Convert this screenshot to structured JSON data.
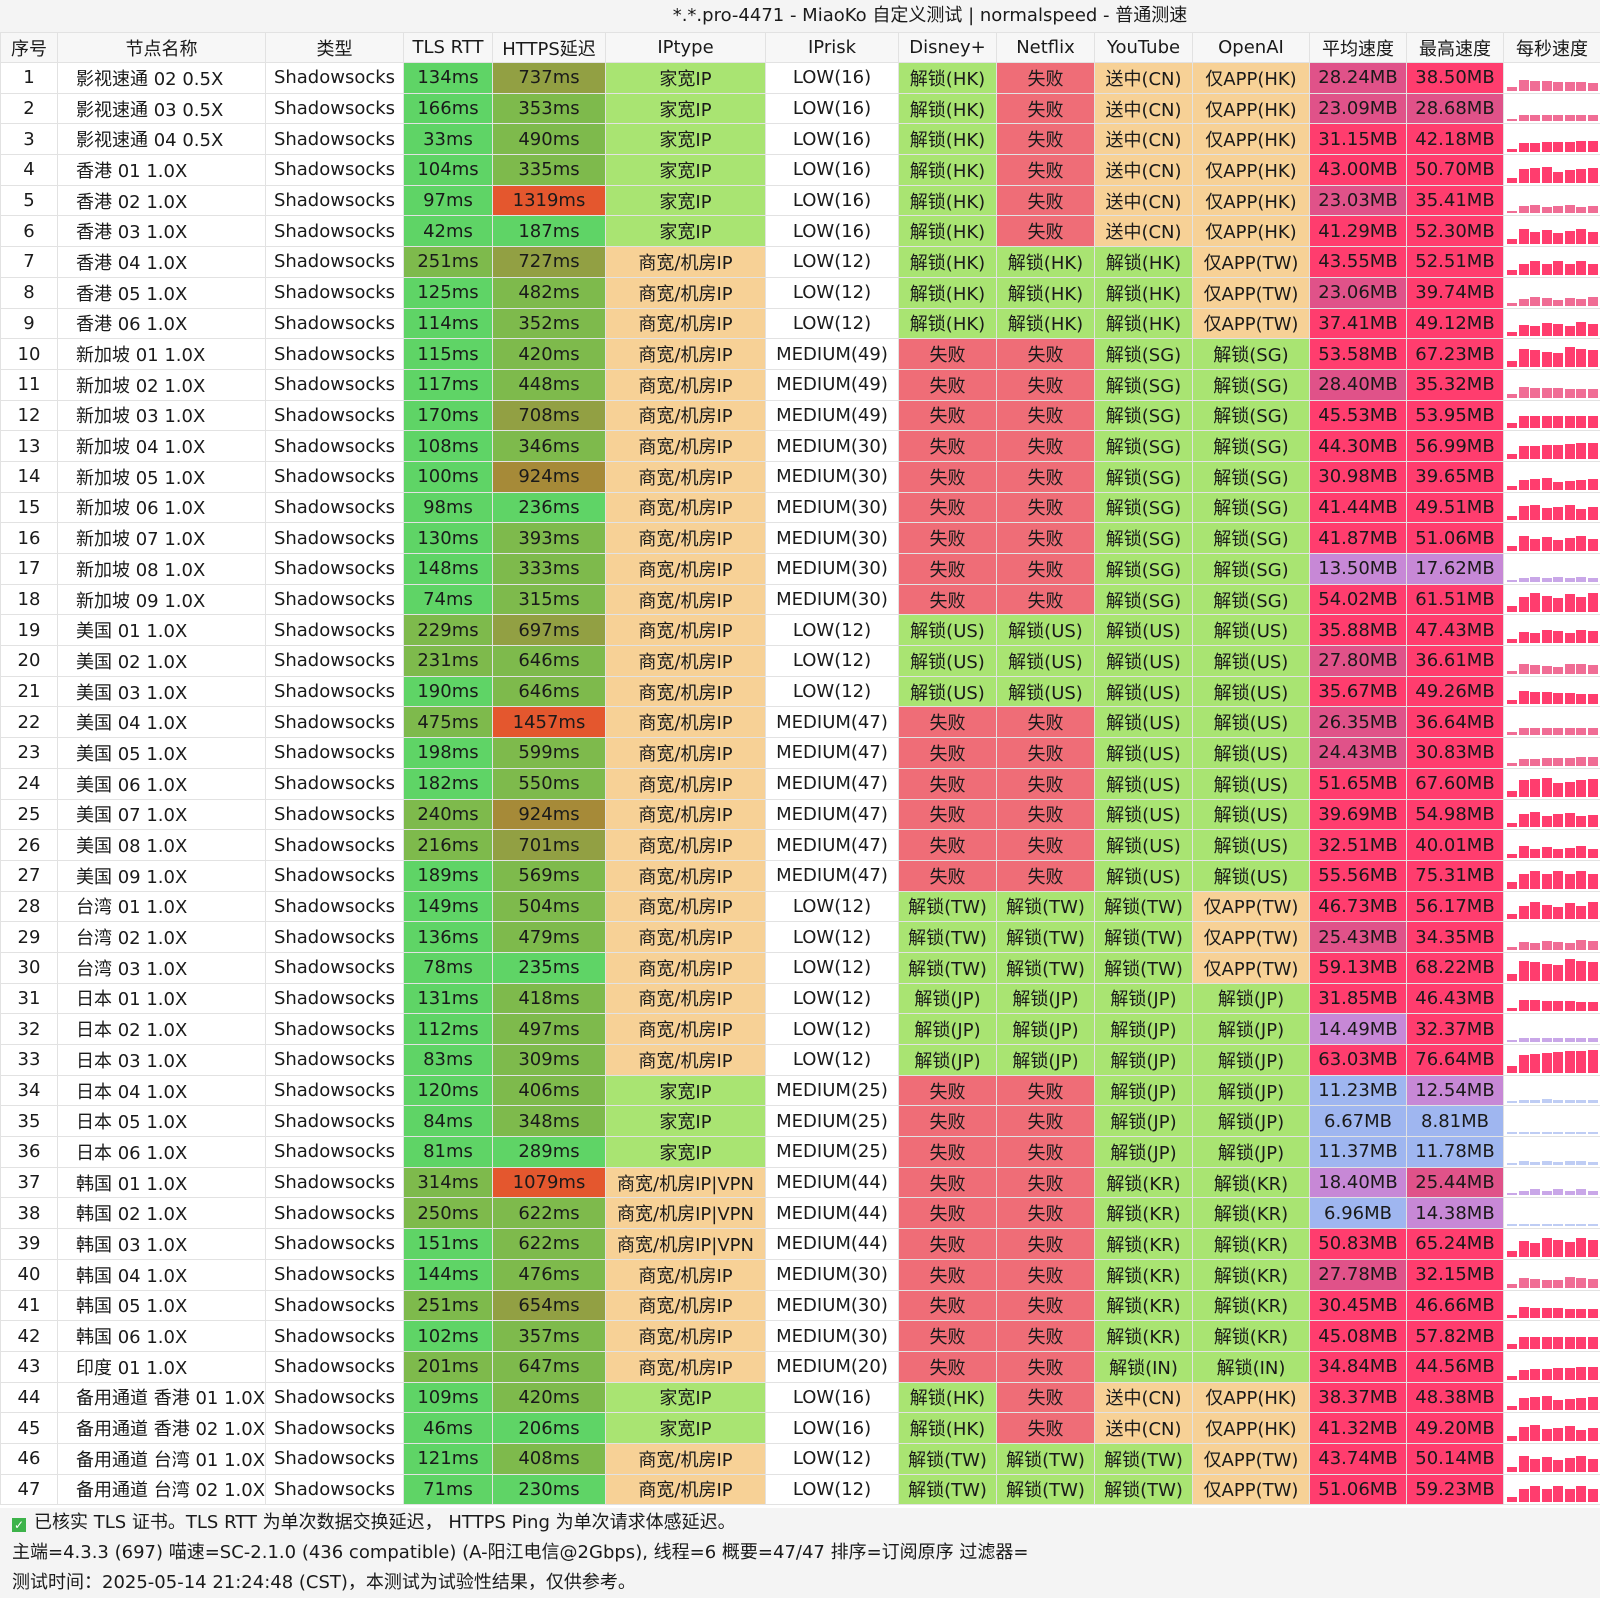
{
  "title": "*.*.pro-4471 - MiaoKo 自定义测试 | normalspeed - 普通测速",
  "headers": [
    "序号",
    "节点名称",
    "类型",
    "TLS RTT",
    "HTTPS延迟",
    "IPtype",
    "IPrisk",
    "Disney+",
    "Netflix",
    "YouTube",
    "OpenAI",
    "平均速度",
    "最高速度",
    "每秒速度"
  ],
  "rows": [
    [
      "1",
      "影视速通 02 0.5X",
      "Shadowsocks",
      "134ms",
      "737ms",
      "家宽IP",
      "LOW(16)",
      "解锁(HK)",
      "失败",
      "送中(CN)",
      "仅APP(HK)",
      "28.24MB",
      "38.50MB"
    ],
    [
      "2",
      "影视速通 03 0.5X",
      "Shadowsocks",
      "166ms",
      "353ms",
      "家宽IP",
      "LOW(16)",
      "解锁(HK)",
      "失败",
      "送中(CN)",
      "仅APP(HK)",
      "23.09MB",
      "28.68MB"
    ],
    [
      "3",
      "影视速通 04 0.5X",
      "Shadowsocks",
      "33ms",
      "490ms",
      "家宽IP",
      "LOW(16)",
      "解锁(HK)",
      "失败",
      "送中(CN)",
      "仅APP(HK)",
      "31.15MB",
      "42.18MB"
    ],
    [
      "4",
      "香港 01 1.0X",
      "Shadowsocks",
      "104ms",
      "335ms",
      "家宽IP",
      "LOW(16)",
      "解锁(HK)",
      "失败",
      "送中(CN)",
      "仅APP(HK)",
      "43.00MB",
      "50.70MB"
    ],
    [
      "5",
      "香港 02 1.0X",
      "Shadowsocks",
      "97ms",
      "1319ms",
      "家宽IP",
      "LOW(16)",
      "解锁(HK)",
      "失败",
      "送中(CN)",
      "仅APP(HK)",
      "23.03MB",
      "35.41MB"
    ],
    [
      "6",
      "香港 03 1.0X",
      "Shadowsocks",
      "42ms",
      "187ms",
      "家宽IP",
      "LOW(16)",
      "解锁(HK)",
      "失败",
      "送中(CN)",
      "仅APP(HK)",
      "41.29MB",
      "52.30MB"
    ],
    [
      "7",
      "香港 04 1.0X",
      "Shadowsocks",
      "251ms",
      "727ms",
      "商宽/机房IP",
      "LOW(12)",
      "解锁(HK)",
      "解锁(HK)",
      "解锁(HK)",
      "仅APP(TW)",
      "43.55MB",
      "52.51MB"
    ],
    [
      "8",
      "香港 05 1.0X",
      "Shadowsocks",
      "125ms",
      "482ms",
      "商宽/机房IP",
      "LOW(12)",
      "解锁(HK)",
      "解锁(HK)",
      "解锁(HK)",
      "仅APP(TW)",
      "23.06MB",
      "39.74MB"
    ],
    [
      "9",
      "香港 06 1.0X",
      "Shadowsocks",
      "114ms",
      "352ms",
      "商宽/机房IP",
      "LOW(12)",
      "解锁(HK)",
      "解锁(HK)",
      "解锁(HK)",
      "仅APP(TW)",
      "37.41MB",
      "49.12MB"
    ],
    [
      "10",
      "新加坡 01 1.0X",
      "Shadowsocks",
      "115ms",
      "420ms",
      "商宽/机房IP",
      "MEDIUM(49)",
      "失败",
      "失败",
      "解锁(SG)",
      "解锁(SG)",
      "53.58MB",
      "67.23MB"
    ],
    [
      "11",
      "新加坡 02 1.0X",
      "Shadowsocks",
      "117ms",
      "448ms",
      "商宽/机房IP",
      "MEDIUM(49)",
      "失败",
      "失败",
      "解锁(SG)",
      "解锁(SG)",
      "28.40MB",
      "35.32MB"
    ],
    [
      "12",
      "新加坡 03 1.0X",
      "Shadowsocks",
      "170ms",
      "708ms",
      "商宽/机房IP",
      "MEDIUM(49)",
      "失败",
      "失败",
      "解锁(SG)",
      "解锁(SG)",
      "45.53MB",
      "53.95MB"
    ],
    [
      "13",
      "新加坡 04 1.0X",
      "Shadowsocks",
      "108ms",
      "346ms",
      "商宽/机房IP",
      "MEDIUM(30)",
      "失败",
      "失败",
      "解锁(SG)",
      "解锁(SG)",
      "44.30MB",
      "56.99MB"
    ],
    [
      "14",
      "新加坡 05 1.0X",
      "Shadowsocks",
      "100ms",
      "924ms",
      "商宽/机房IP",
      "MEDIUM(30)",
      "失败",
      "失败",
      "解锁(SG)",
      "解锁(SG)",
      "30.98MB",
      "39.65MB"
    ],
    [
      "15",
      "新加坡 06 1.0X",
      "Shadowsocks",
      "98ms",
      "236ms",
      "商宽/机房IP",
      "MEDIUM(30)",
      "失败",
      "失败",
      "解锁(SG)",
      "解锁(SG)",
      "41.44MB",
      "49.51MB"
    ],
    [
      "16",
      "新加坡 07 1.0X",
      "Shadowsocks",
      "130ms",
      "393ms",
      "商宽/机房IP",
      "MEDIUM(30)",
      "失败",
      "失败",
      "解锁(SG)",
      "解锁(SG)",
      "41.87MB",
      "51.06MB"
    ],
    [
      "17",
      "新加坡 08 1.0X",
      "Shadowsocks",
      "148ms",
      "333ms",
      "商宽/机房IP",
      "MEDIUM(30)",
      "失败",
      "失败",
      "解锁(SG)",
      "解锁(SG)",
      "13.50MB",
      "17.62MB"
    ],
    [
      "18",
      "新加坡 09 1.0X",
      "Shadowsocks",
      "74ms",
      "315ms",
      "商宽/机房IP",
      "MEDIUM(30)",
      "失败",
      "失败",
      "解锁(SG)",
      "解锁(SG)",
      "54.02MB",
      "61.51MB"
    ],
    [
      "19",
      "美国 01 1.0X",
      "Shadowsocks",
      "229ms",
      "697ms",
      "商宽/机房IP",
      "LOW(12)",
      "解锁(US)",
      "解锁(US)",
      "解锁(US)",
      "解锁(US)",
      "35.88MB",
      "47.43MB"
    ],
    [
      "20",
      "美国 02 1.0X",
      "Shadowsocks",
      "231ms",
      "646ms",
      "商宽/机房IP",
      "LOW(12)",
      "解锁(US)",
      "解锁(US)",
      "解锁(US)",
      "解锁(US)",
      "27.80MB",
      "36.61MB"
    ],
    [
      "21",
      "美国 03 1.0X",
      "Shadowsocks",
      "190ms",
      "646ms",
      "商宽/机房IP",
      "LOW(12)",
      "解锁(US)",
      "解锁(US)",
      "解锁(US)",
      "解锁(US)",
      "35.67MB",
      "49.26MB"
    ],
    [
      "22",
      "美国 04 1.0X",
      "Shadowsocks",
      "475ms",
      "1457ms",
      "商宽/机房IP",
      "MEDIUM(47)",
      "失败",
      "失败",
      "解锁(US)",
      "解锁(US)",
      "26.35MB",
      "36.64MB"
    ],
    [
      "23",
      "美国 05 1.0X",
      "Shadowsocks",
      "198ms",
      "599ms",
      "商宽/机房IP",
      "MEDIUM(47)",
      "失败",
      "失败",
      "解锁(US)",
      "解锁(US)",
      "24.43MB",
      "30.83MB"
    ],
    [
      "24",
      "美国 06 1.0X",
      "Shadowsocks",
      "182ms",
      "550ms",
      "商宽/机房IP",
      "MEDIUM(47)",
      "失败",
      "失败",
      "解锁(US)",
      "解锁(US)",
      "51.65MB",
      "67.60MB"
    ],
    [
      "25",
      "美国 07 1.0X",
      "Shadowsocks",
      "240ms",
      "924ms",
      "商宽/机房IP",
      "MEDIUM(47)",
      "失败",
      "失败",
      "解锁(US)",
      "解锁(US)",
      "39.69MB",
      "54.98MB"
    ],
    [
      "26",
      "美国 08 1.0X",
      "Shadowsocks",
      "216ms",
      "701ms",
      "商宽/机房IP",
      "MEDIUM(47)",
      "失败",
      "失败",
      "解锁(US)",
      "解锁(US)",
      "32.51MB",
      "40.01MB"
    ],
    [
      "27",
      "美国 09 1.0X",
      "Shadowsocks",
      "189ms",
      "569ms",
      "商宽/机房IP",
      "MEDIUM(47)",
      "失败",
      "失败",
      "解锁(US)",
      "解锁(US)",
      "55.56MB",
      "75.31MB"
    ],
    [
      "28",
      "台湾 01 1.0X",
      "Shadowsocks",
      "149ms",
      "504ms",
      "商宽/机房IP",
      "LOW(12)",
      "解锁(TW)",
      "解锁(TW)",
      "解锁(TW)",
      "仅APP(TW)",
      "46.73MB",
      "56.17MB"
    ],
    [
      "29",
      "台湾 02 1.0X",
      "Shadowsocks",
      "136ms",
      "479ms",
      "商宽/机房IP",
      "LOW(12)",
      "解锁(TW)",
      "解锁(TW)",
      "解锁(TW)",
      "仅APP(TW)",
      "25.43MB",
      "34.35MB"
    ],
    [
      "30",
      "台湾 03 1.0X",
      "Shadowsocks",
      "78ms",
      "235ms",
      "商宽/机房IP",
      "LOW(12)",
      "解锁(TW)",
      "解锁(TW)",
      "解锁(TW)",
      "仅APP(TW)",
      "59.13MB",
      "68.22MB"
    ],
    [
      "31",
      "日本 01 1.0X",
      "Shadowsocks",
      "131ms",
      "418ms",
      "商宽/机房IP",
      "LOW(12)",
      "解锁(JP)",
      "解锁(JP)",
      "解锁(JP)",
      "解锁(JP)",
      "31.85MB",
      "46.43MB"
    ],
    [
      "32",
      "日本 02 1.0X",
      "Shadowsocks",
      "112ms",
      "497ms",
      "商宽/机房IP",
      "LOW(12)",
      "解锁(JP)",
      "解锁(JP)",
      "解锁(JP)",
      "解锁(JP)",
      "14.49MB",
      "32.37MB"
    ],
    [
      "33",
      "日本 03 1.0X",
      "Shadowsocks",
      "83ms",
      "309ms",
      "商宽/机房IP",
      "LOW(12)",
      "解锁(JP)",
      "解锁(JP)",
      "解锁(JP)",
      "解锁(JP)",
      "63.03MB",
      "76.64MB"
    ],
    [
      "34",
      "日本 04 1.0X",
      "Shadowsocks",
      "120ms",
      "406ms",
      "家宽IP",
      "MEDIUM(25)",
      "失败",
      "失败",
      "解锁(JP)",
      "解锁(JP)",
      "11.23MB",
      "12.54MB"
    ],
    [
      "35",
      "日本 05 1.0X",
      "Shadowsocks",
      "84ms",
      "348ms",
      "家宽IP",
      "MEDIUM(25)",
      "失败",
      "失败",
      "解锁(JP)",
      "解锁(JP)",
      "6.67MB",
      "8.81MB"
    ],
    [
      "36",
      "日本 06 1.0X",
      "Shadowsocks",
      "81ms",
      "289ms",
      "家宽IP",
      "MEDIUM(25)",
      "失败",
      "失败",
      "解锁(JP)",
      "解锁(JP)",
      "11.37MB",
      "11.78MB"
    ],
    [
      "37",
      "韩国 01 1.0X",
      "Shadowsocks",
      "314ms",
      "1079ms",
      "商宽/机房IP|VPN",
      "MEDIUM(44)",
      "失败",
      "失败",
      "解锁(KR)",
      "解锁(KR)",
      "18.40MB",
      "25.44MB"
    ],
    [
      "38",
      "韩国 02 1.0X",
      "Shadowsocks",
      "250ms",
      "622ms",
      "商宽/机房IP|VPN",
      "MEDIUM(44)",
      "失败",
      "失败",
      "解锁(KR)",
      "解锁(KR)",
      "6.96MB",
      "14.38MB"
    ],
    [
      "39",
      "韩国 03 1.0X",
      "Shadowsocks",
      "151ms",
      "622ms",
      "商宽/机房IP|VPN",
      "MEDIUM(44)",
      "失败",
      "失败",
      "解锁(KR)",
      "解锁(KR)",
      "50.83MB",
      "65.24MB"
    ],
    [
      "40",
      "韩国 04 1.0X",
      "Shadowsocks",
      "144ms",
      "476ms",
      "商宽/机房IP",
      "MEDIUM(30)",
      "失败",
      "失败",
      "解锁(KR)",
      "解锁(KR)",
      "27.78MB",
      "32.15MB"
    ],
    [
      "41",
      "韩国 05 1.0X",
      "Shadowsocks",
      "251ms",
      "654ms",
      "商宽/机房IP",
      "MEDIUM(30)",
      "失败",
      "失败",
      "解锁(KR)",
      "解锁(KR)",
      "30.45MB",
      "46.66MB"
    ],
    [
      "42",
      "韩国 06 1.0X",
      "Shadowsocks",
      "102ms",
      "357ms",
      "商宽/机房IP",
      "MEDIUM(30)",
      "失败",
      "失败",
      "解锁(KR)",
      "解锁(KR)",
      "45.08MB",
      "57.82MB"
    ],
    [
      "43",
      "印度 01 1.0X",
      "Shadowsocks",
      "201ms",
      "647ms",
      "商宽/机房IP",
      "MEDIUM(20)",
      "失败",
      "失败",
      "解锁(IN)",
      "解锁(IN)",
      "34.84MB",
      "44.56MB"
    ],
    [
      "44",
      "备用通道 香港 01 1.0X",
      "Shadowsocks",
      "109ms",
      "420ms",
      "家宽IP",
      "LOW(16)",
      "解锁(HK)",
      "失败",
      "送中(CN)",
      "仅APP(HK)",
      "38.37MB",
      "48.38MB"
    ],
    [
      "45",
      "备用通道 香港 02 1.0X",
      "Shadowsocks",
      "46ms",
      "206ms",
      "家宽IP",
      "LOW(16)",
      "解锁(HK)",
      "失败",
      "送中(CN)",
      "仅APP(HK)",
      "41.32MB",
      "49.20MB"
    ],
    [
      "46",
      "备用通道 台湾 01 1.0X",
      "Shadowsocks",
      "121ms",
      "408ms",
      "商宽/机房IP",
      "LOW(12)",
      "解锁(TW)",
      "解锁(TW)",
      "解锁(TW)",
      "仅APP(TW)",
      "43.74MB",
      "50.14MB"
    ],
    [
      "47",
      "备用通道 台湾 02 1.0X",
      "Shadowsocks",
      "71ms",
      "230ms",
      "商宽/机房IP",
      "LOW(12)",
      "解锁(TW)",
      "解锁(TW)",
      "解锁(TW)",
      "仅APP(TW)",
      "51.06MB",
      "59.23MB"
    ]
  ],
  "footer": {
    "line1": "已核实 TLS 证书。TLS RTT 为单次数据交换延迟， HTTPS Ping 为单次请求体感延迟。",
    "line2": "主端=4.3.3 (697) 喵速=SC-2.1.0 (436 compatible) (A-阳江电信@2Gbps), 线程=6 概要=47/47 排序=订阅原序 过滤器=",
    "line3": "测试时间：2025-05-14 21:24:48 (CST)，本测试为试验性结果，仅供参考。"
  },
  "colors": {
    "fast_latency": "#5fd466",
    "slow_latency": "#e4572e",
    "unlocked": "#a9e472",
    "failed": "#ef6d77",
    "partial": "#f7d196",
    "speed_high": "#ff3d6e",
    "speed_low": "#9fb6f0"
  }
}
